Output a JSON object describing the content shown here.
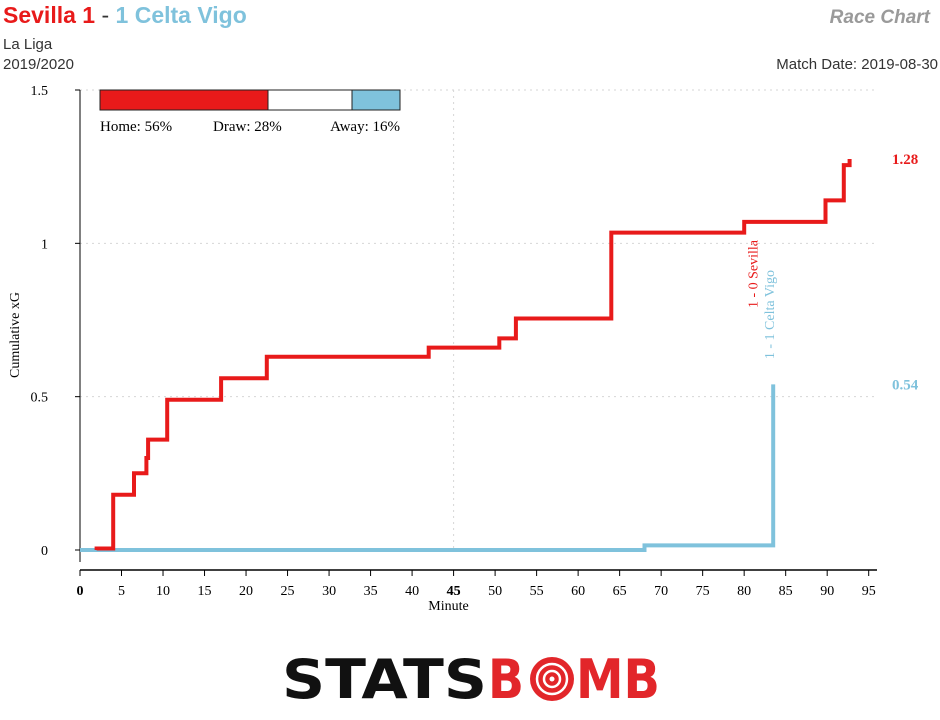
{
  "header": {
    "home_team": "Sevilla",
    "home_score": "1",
    "separator": "-",
    "away_score": "1",
    "away_team": "Celta Vigo",
    "chart_type": "Race Chart",
    "competition": "La Liga",
    "season": "2019/2020",
    "match_date": "Match Date: 2019-08-30"
  },
  "colors": {
    "home": "#e81a1a",
    "away": "#7fc2dc",
    "grid": "#d6d6d6"
  },
  "probabilities": {
    "home_pct": 56,
    "draw_pct": 28,
    "away_pct": 16,
    "home_label": "Home: 56%",
    "draw_label": "Draw: 28%",
    "away_label": "Away: 16%"
  },
  "logo": {
    "text_left": "STATS",
    "text_mid": "B",
    "text_right": "MB"
  },
  "chart_data": {
    "type": "line",
    "step": true,
    "xlabel": "Minute",
    "ylabel": "Cumulative xG",
    "xlim": [
      0,
      96
    ],
    "ylim": [
      0,
      1.5
    ],
    "x_ticks": [
      0,
      5,
      10,
      15,
      20,
      25,
      30,
      35,
      40,
      45,
      50,
      55,
      60,
      65,
      70,
      75,
      80,
      85,
      90,
      95
    ],
    "x_tick_labels": [
      "0",
      "5",
      "10",
      "15",
      "20",
      "25",
      "30",
      "35",
      "40",
      "45",
      "50",
      "55",
      "60",
      "65",
      "70",
      "75",
      "80",
      "85",
      "90",
      "95"
    ],
    "x_halftime_tick": 45,
    "x_halftime_label": "45",
    "y_ticks": [
      0,
      0.5,
      1,
      1.5
    ],
    "y_tick_labels": [
      "0",
      "0.5",
      "1",
      "1.5"
    ],
    "grid": true,
    "series": [
      {
        "name": "Sevilla",
        "team": "home",
        "final_label": "1.28",
        "points": [
          [
            2,
            0
          ],
          [
            2,
            0.005
          ],
          [
            4,
            0.005
          ],
          [
            4,
            0.18
          ],
          [
            6.5,
            0.18
          ],
          [
            6.5,
            0.25
          ],
          [
            8,
            0.25
          ],
          [
            8,
            0.3
          ],
          [
            8.2,
            0.3
          ],
          [
            8.2,
            0.36
          ],
          [
            10.5,
            0.36
          ],
          [
            10.5,
            0.49
          ],
          [
            17,
            0.49
          ],
          [
            17,
            0.56
          ],
          [
            22.5,
            0.56
          ],
          [
            22.5,
            0.63
          ],
          [
            42,
            0.63
          ],
          [
            42,
            0.66
          ],
          [
            50.5,
            0.66
          ],
          [
            50.5,
            0.69
          ],
          [
            52.5,
            0.69
          ],
          [
            52.5,
            0.755
          ],
          [
            64,
            0.755
          ],
          [
            64,
            1.035
          ],
          [
            80,
            1.035
          ],
          [
            80,
            1.07
          ],
          [
            89.8,
            1.07
          ],
          [
            89.8,
            1.14
          ],
          [
            92,
            1.14
          ],
          [
            92,
            1.255
          ],
          [
            92.7,
            1.255
          ],
          [
            92.7,
            1.275
          ]
        ]
      },
      {
        "name": "Celta Vigo",
        "team": "away",
        "final_label": "0.54",
        "points": [
          [
            0,
            0
          ],
          [
            68,
            0
          ],
          [
            68,
            0.015
          ],
          [
            83.5,
            0.015
          ],
          [
            83.5,
            0.54
          ]
        ]
      }
    ],
    "annotations": [
      {
        "text": "1 - 0 Sevilla",
        "minute": 81.5,
        "team": "home"
      },
      {
        "text": "1 - 1 Celta Vigo",
        "minute": 83.5,
        "team": "away"
      }
    ]
  }
}
